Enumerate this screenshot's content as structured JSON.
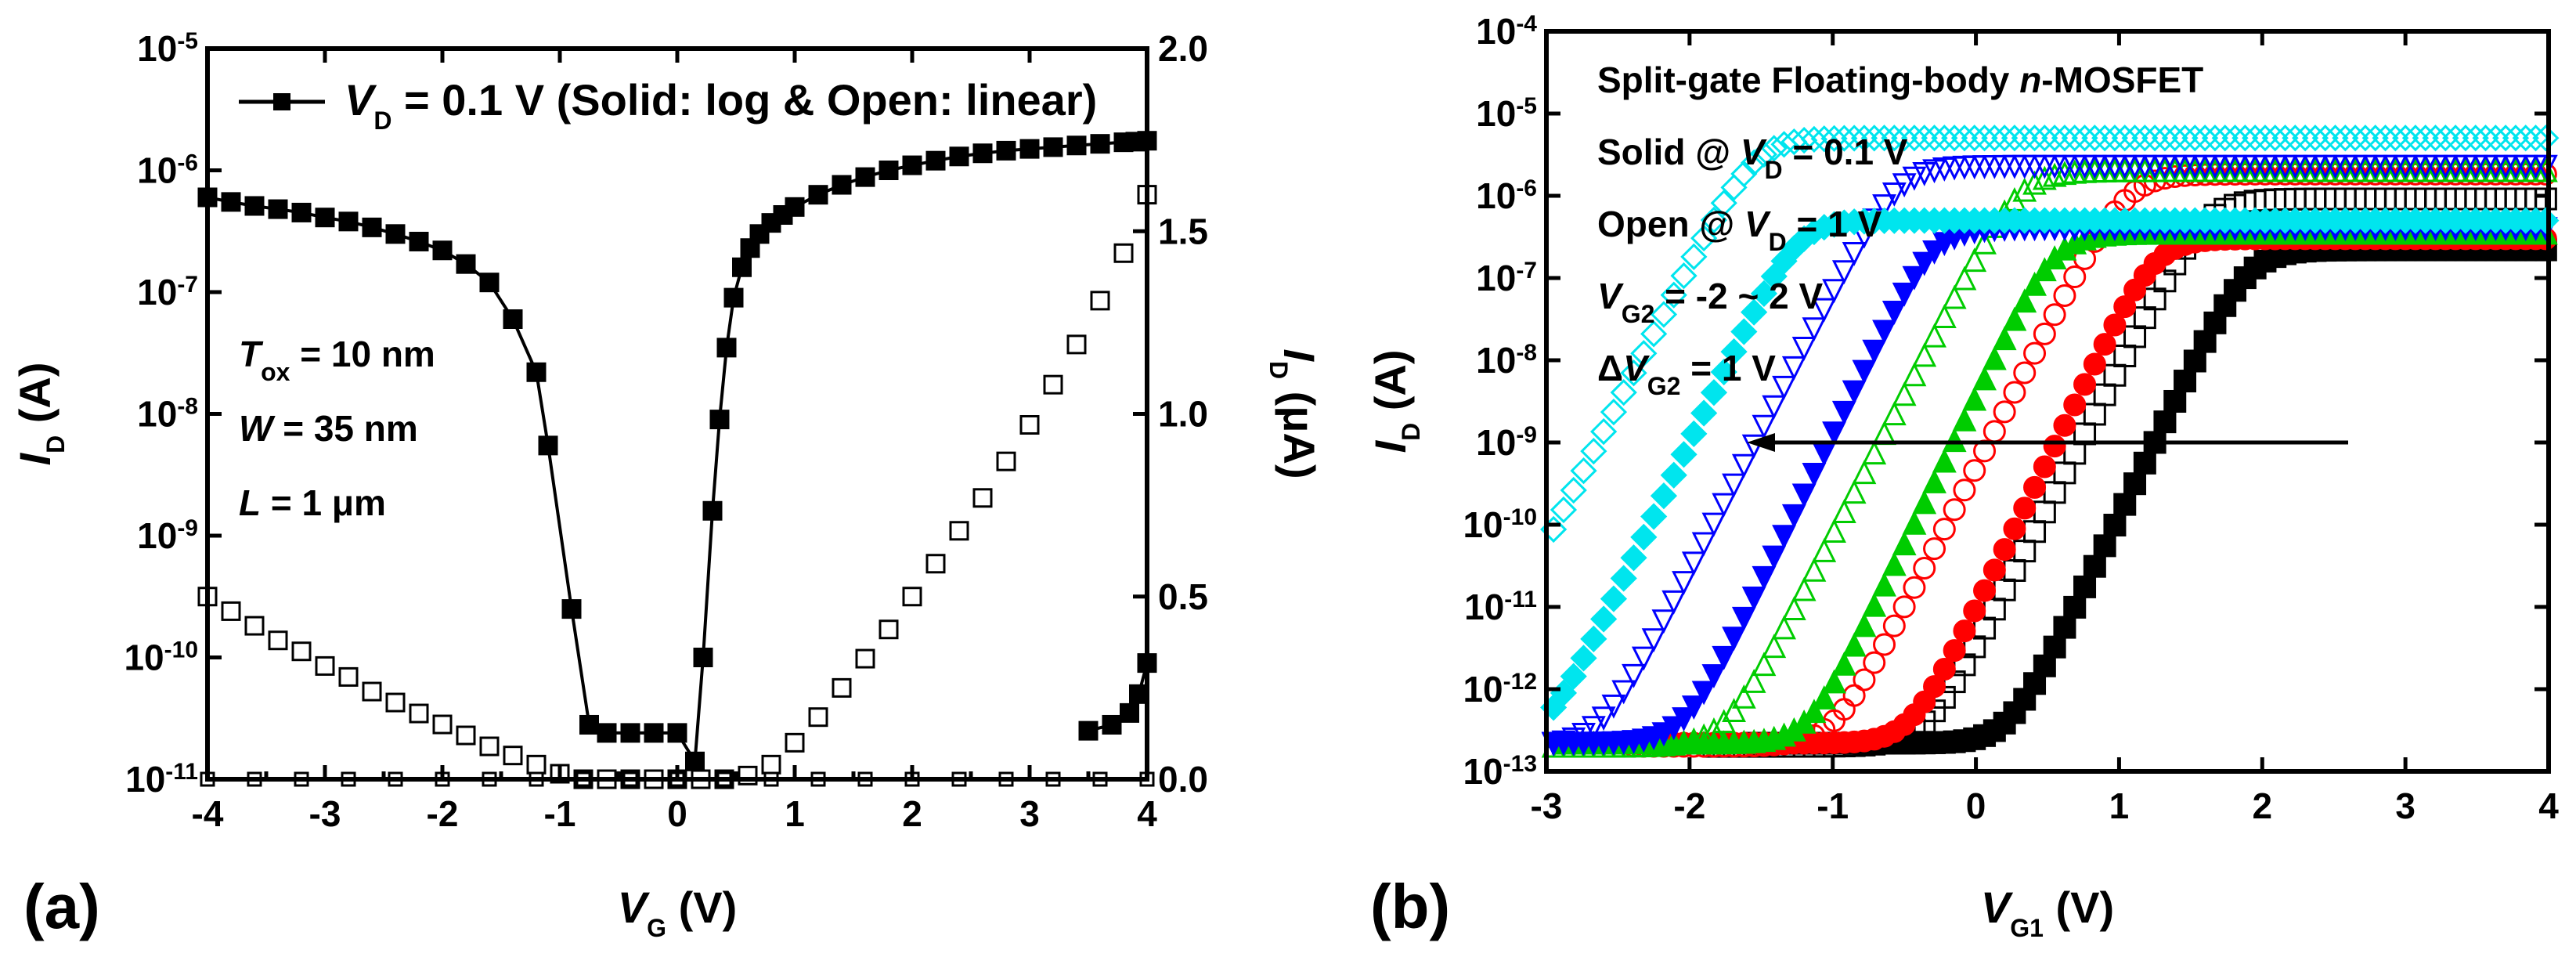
{
  "chart_data": [
    {
      "panel": "(a)",
      "type": "line",
      "xlabel": {
        "main": "V",
        "sub": "G",
        "unit": " (V)"
      },
      "ylabel_left": {
        "main": "I",
        "sub": "D",
        "unit": " (A)"
      },
      "ylabel_right": {
        "main": "I",
        "sub": "D",
        "unit": " (μA)"
      },
      "xlim": [
        -4,
        4
      ],
      "ylim_left_log10": [
        -11,
        -5
      ],
      "ylim_right": [
        0.0,
        2.0
      ],
      "xticks": [
        -4,
        -3,
        -2,
        -1,
        0,
        1,
        2,
        3,
        4
      ],
      "xtick_labels": [
        "-4",
        "-3",
        "-2",
        "-1",
        "0",
        "1",
        "2",
        "3",
        "4"
      ],
      "yticks_left_exp": [
        -11,
        -10,
        -9,
        -8,
        -7,
        -6,
        -5
      ],
      "yticks_left_labels": [
        "10-11",
        "10-10",
        "10-9",
        "10-8",
        "10-7",
        "10-6",
        "10-5"
      ],
      "yticks_right": [
        0.0,
        0.5,
        1.0,
        1.5,
        2.0
      ],
      "yticks_right_labels": [
        "0.0",
        "0.5",
        "1.0",
        "1.5",
        "2.0"
      ],
      "legend": {
        "main": "V",
        "sub": "D",
        "text": " = 0.1 V (Solid: log & Open: linear)"
      },
      "annotations": [
        {
          "main": "T",
          "sub": "ox",
          "text": " = 10 nm"
        },
        {
          "main": "W",
          "sub": "",
          "text": " = 35 nm"
        },
        {
          "main": "L",
          "sub": "",
          "text": " = 1 μm"
        }
      ],
      "series": [
        {
          "name": "log (solid)",
          "axis": "left-log",
          "marker": "square-filled",
          "x": [
            -4.0,
            -3.8,
            -3.6,
            -3.4,
            -3.2,
            -3.0,
            -2.8,
            -2.6,
            -2.4,
            -2.2,
            -2.0,
            -1.8,
            -1.6,
            -1.4,
            -1.2,
            -1.1,
            -0.9,
            -0.75,
            -0.6,
            -0.4,
            -0.2,
            0.0,
            0.15,
            0.22,
            0.3,
            0.36,
            0.42,
            0.48,
            0.55,
            0.62,
            0.7,
            0.8,
            0.9,
            1.0,
            1.2,
            1.4,
            1.6,
            1.8,
            2.0,
            2.2,
            2.4,
            2.6,
            2.8,
            3.0,
            3.2,
            3.4,
            3.6,
            3.8,
            3.9,
            4.0
          ],
          "y": [
            6e-07,
            5.5e-07,
            5.1e-07,
            4.8e-07,
            4.5e-07,
            4.1e-07,
            3.8e-07,
            3.4e-07,
            3e-07,
            2.6e-07,
            2.2e-07,
            1.7e-07,
            1.2e-07,
            6e-08,
            2.2e-08,
            5.5e-09,
            2.5e-10,
            2.8e-11,
            2.4e-11,
            2.4e-11,
            2.4e-11,
            2.4e-11,
            1.4e-11,
            1e-10,
            1.6e-09,
            9e-09,
            3.5e-08,
            9e-08,
            1.6e-07,
            2.3e-07,
            3e-07,
            3.7e-07,
            4.3e-07,
            5e-07,
            6.3e-07,
            7.6e-07,
            8.8e-07,
            1e-06,
            1.1e-06,
            1.2e-06,
            1.3e-06,
            1.38e-06,
            1.45e-06,
            1.5e-06,
            1.55e-06,
            1.6e-06,
            1.65e-06,
            1.7e-06,
            1.72e-06,
            1.75e-06
          ]
        },
        {
          "name": "linear (open)",
          "axis": "right-linear",
          "marker": "square-open",
          "x": [
            -4.0,
            -3.8,
            -3.6,
            -3.4,
            -3.2,
            -3.0,
            -2.8,
            -2.6,
            -2.4,
            -2.2,
            -2.0,
            -1.8,
            -1.6,
            -1.4,
            -1.2,
            -1.0,
            -0.8,
            -0.6,
            -0.4,
            -0.2,
            0.0,
            0.2,
            0.4,
            0.6,
            0.8,
            1.0,
            1.2,
            1.4,
            1.6,
            1.8,
            2.0,
            2.2,
            2.4,
            2.6,
            2.8,
            3.0,
            3.2,
            3.4,
            3.6,
            3.8,
            4.0
          ],
          "y": [
            0.5,
            0.46,
            0.42,
            0.38,
            0.35,
            0.31,
            0.28,
            0.24,
            0.21,
            0.18,
            0.15,
            0.12,
            0.09,
            0.065,
            0.04,
            0.015,
            0.0,
            0.0,
            0.0,
            0.0,
            0.0,
            0.0,
            0.0,
            0.01,
            0.04,
            0.1,
            0.17,
            0.25,
            0.33,
            0.41,
            0.5,
            0.59,
            0.68,
            0.77,
            0.87,
            0.97,
            1.08,
            1.19,
            1.31,
            1.44,
            1.6
          ]
        },
        {
          "name": "baseline (open)",
          "axis": "left-log",
          "marker": "square-open-small",
          "x": [
            -4.0,
            -3.6,
            -3.2,
            -2.8,
            -2.4,
            -2.0,
            -1.6,
            -1.2,
            -0.8,
            -0.4,
            0.0,
            0.4,
            0.8,
            1.2,
            1.6,
            2.0,
            2.4,
            2.8,
            3.2,
            3.6,
            4.0
          ],
          "y": [
            1e-11,
            1e-11,
            1e-11,
            1e-11,
            1e-11,
            1e-11,
            1e-11,
            1e-11,
            1e-11,
            1e-11,
            1e-11,
            1e-11,
            1e-11,
            1e-11,
            1e-11,
            1e-11,
            1e-11,
            1e-11,
            1e-11,
            1e-11,
            1e-11
          ]
        },
        {
          "name": "upturn (solid)",
          "axis": "left-log",
          "marker": "square-filled",
          "x": [
            3.5,
            3.7,
            3.85,
            3.93,
            4.0
          ],
          "y": [
            2.5e-11,
            2.8e-11,
            3.5e-11,
            5e-11,
            9e-11
          ]
        }
      ]
    },
    {
      "panel": "(b)",
      "type": "scatter",
      "xlabel": {
        "main": "V",
        "sub": "G1",
        "unit": " (V)"
      },
      "ylabel": {
        "main": "I",
        "sub": "D",
        "unit": " (A)"
      },
      "xlim": [
        -3,
        4
      ],
      "ylim_log10": [
        -13,
        -4
      ],
      "xticks": [
        -3,
        -2,
        -1,
        0,
        1,
        2,
        3,
        4
      ],
      "xtick_labels": [
        "-3",
        "-2",
        "-1",
        "0",
        "1",
        "2",
        "3",
        "4"
      ],
      "yticks_exp": [
        -13,
        -12,
        -11,
        -10,
        -9,
        -8,
        -7,
        -6,
        -5,
        -4
      ],
      "yticks_labels": [
        "10-13",
        "10-12",
        "10-11",
        "10-10",
        "10-9",
        "10-8",
        "10-7",
        "10-6",
        "10-5",
        "10-4"
      ],
      "annotations": [
        {
          "main": "Split-gate Floating-body ",
          "ital": "n",
          "text": "-MOSFET"
        },
        {
          "prefix": "Solid @ ",
          "main": "V",
          "sub": "D",
          "text": " = 0.1 V"
        },
        {
          "prefix": "Open @ ",
          "main": "V",
          "sub": "D",
          "text": " = 1 V"
        },
        {
          "prefix": "",
          "main": "V",
          "sub": "G2",
          "text": " = -2 ~ 2 V"
        },
        {
          "prefix": "Δ",
          "main": "V",
          "sub": "G2",
          "text": " = 1 V"
        }
      ],
      "arrow": {
        "from_x": 2.6,
        "to_x": -1.6,
        "y_log10": -9.0,
        "direction": "left"
      },
      "series": [
        {
          "name": "VG2 = -2 V",
          "color": "#000000",
          "marker": "square",
          "vt_linear": 1.9,
          "vt_sat": 1.6,
          "i_sat_lin": 2.2e-07,
          "i_sat_hi": 1e-06,
          "floor": 2.2e-13
        },
        {
          "name": "VG2 = -1 V",
          "color": "#ff0000",
          "marker": "circle",
          "vt_linear": 1.25,
          "vt_sat": 1.05,
          "i_sat_lin": 3e-07,
          "i_sat_hi": 2e-06,
          "floor": 2.2e-13
        },
        {
          "name": "VG2 = 0 V",
          "color": "#00cc00",
          "marker": "triangle-up",
          "vt_linear": 0.55,
          "vt_sat": 0.3,
          "i_sat_lin": 3.5e-07,
          "i_sat_hi": 2.2e-06,
          "floor": 2.2e-13
        },
        {
          "name": "VG2 = 1 V",
          "color": "#0000ff",
          "marker": "triangle-down",
          "vt_linear": -0.3,
          "vt_sat": -0.55,
          "i_sat_lin": 4e-07,
          "i_sat_hi": 2.5e-06,
          "floor": 2.2e-13
        },
        {
          "name": "VG2 = 2 V",
          "color": "#00e5ee",
          "marker": "diamond",
          "vt_linear": -1.25,
          "vt_sat": -1.55,
          "i_sat_lin": 5e-07,
          "i_sat_hi": 5.5e-06,
          "floor": 2.2e-13
        }
      ]
    }
  ]
}
